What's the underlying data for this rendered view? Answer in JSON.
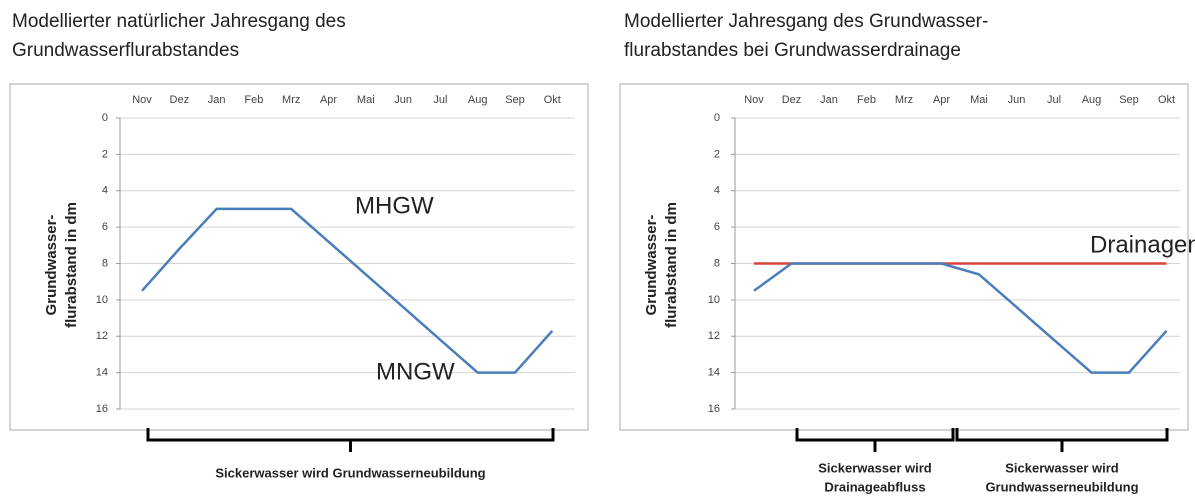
{
  "chart_data": [
    {
      "type": "line",
      "title": [
        "Modellierter natürlicher Jahresgang des",
        "Grundwasserflurabstandes"
      ],
      "y_label": [
        "Grundwasser-",
        "flurabstand in dm"
      ],
      "categories": [
        "Nov",
        "Dez",
        "Jan",
        "Feb",
        "Mrz",
        "Apr",
        "Mai",
        "Jun",
        "Jul",
        "Aug",
        "Sep",
        "Okt"
      ],
      "x_axis_position": "top",
      "series": [
        {
          "color": "#4a7ebb",
          "values": [
            9.5,
            7.2,
            5,
            5,
            5,
            6.8,
            8.6,
            10.4,
            12.2,
            14,
            14,
            11.7
          ]
        }
      ],
      "ylim": [
        16,
        0
      ],
      "yticks": [
        0,
        2,
        4,
        6,
        8,
        10,
        12,
        14,
        16
      ],
      "grid": true,
      "annotations": [
        "MHGW",
        "MNGW"
      ],
      "brackets": [
        [
          "Sickerwasser wird Grundwasserneubildung"
        ]
      ]
    },
    {
      "type": "line",
      "title": [
        "Modellierter Jahresgang des Grundwasser-",
        "flurabstandes bei Grundwasserdrainage"
      ],
      "y_label": [
        "Grundwasser-",
        "flurabstand in dm"
      ],
      "categories": [
        "Nov",
        "Dez",
        "Jan",
        "Feb",
        "Mrz",
        "Apr",
        "Mai",
        "Jun",
        "Jul",
        "Aug",
        "Sep",
        "Okt"
      ],
      "x_axis_position": "top",
      "series": [
        {
          "color": "#d9433a",
          "values": [
            8,
            8,
            8,
            8,
            8,
            8,
            8,
            8,
            8,
            8,
            8,
            8
          ]
        },
        {
          "color": "#4a7ebb",
          "values": [
            9.5,
            8,
            8,
            8,
            8,
            8,
            8.6,
            10.4,
            12.2,
            14,
            14,
            11.7
          ]
        }
      ],
      "ylim": [
        16,
        0
      ],
      "yticks": [
        0,
        2,
        4,
        6,
        8,
        10,
        12,
        14,
        16
      ],
      "grid": true,
      "annotations": [
        "Drainageniveau"
      ],
      "brackets": [
        [
          "Sickerwasser wird",
          "Drainageabfluss"
        ],
        [
          "Sickerwasser wird",
          "Grundwasserneubildung"
        ]
      ]
    }
  ]
}
